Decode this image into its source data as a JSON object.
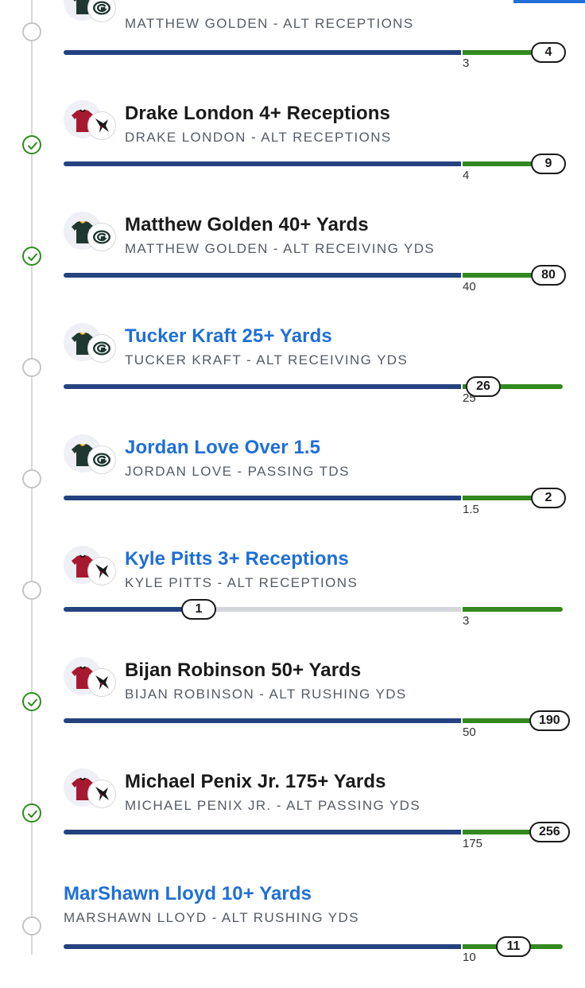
{
  "legs": [
    {
      "title": "",
      "subtitle": "MATTHEW GOLDEN - ALT RECEPTIONS",
      "threshold": "3",
      "actual": "4",
      "status": "open",
      "team": "packers",
      "title_style": "dark"
    },
    {
      "title": "Drake London 4+ Receptions",
      "subtitle": "DRAKE LONDON - ALT RECEPTIONS",
      "threshold": "4",
      "actual": "9",
      "status": "won",
      "team": "falcons",
      "title_style": "dark"
    },
    {
      "title": "Matthew Golden 40+ Yards",
      "subtitle": "MATTHEW GOLDEN - ALT RECEIVING YDS",
      "threshold": "40",
      "actual": "80",
      "status": "won",
      "team": "packers",
      "title_style": "dark"
    },
    {
      "title": "Tucker Kraft 25+ Yards",
      "subtitle": "TUCKER KRAFT - ALT RECEIVING YDS",
      "threshold": "25",
      "actual": "26",
      "status": "open",
      "team": "packers",
      "title_style": "link"
    },
    {
      "title": "Jordan Love Over 1.5",
      "subtitle": "JORDAN LOVE - PASSING TDS",
      "threshold": "1.5",
      "actual": "2",
      "status": "open",
      "team": "packers",
      "title_style": "link"
    },
    {
      "title": "Kyle Pitts 3+ Receptions",
      "subtitle": "KYLE PITTS - ALT RECEPTIONS",
      "threshold": "3",
      "actual": "1",
      "status": "open",
      "team": "falcons",
      "title_style": "link"
    },
    {
      "title": "Bijan Robinson 50+ Yards",
      "subtitle": "BIJAN ROBINSON - ALT RUSHING YDS",
      "threshold": "50",
      "actual": "190",
      "status": "won",
      "team": "falcons",
      "title_style": "dark"
    },
    {
      "title": "Michael Penix Jr. 175+ Yards",
      "subtitle": "MICHAEL PENIX JR. - ALT PASSING YDS",
      "threshold": "175",
      "actual": "256",
      "status": "won",
      "team": "falcons",
      "title_style": "dark"
    },
    {
      "title": "MarShawn Lloyd 10+ Yards",
      "subtitle": "MARSHAWN LLOYD - ALT RUSHING YDS",
      "threshold": "10",
      "actual": "11",
      "status": "open",
      "team": "none",
      "title_style": "link"
    }
  ],
  "colors": {
    "progress_blue": "#24427f",
    "goal_green": "#33891f",
    "link_blue": "#1f6fd6",
    "won_green": "#2e8b1e",
    "falcons_red": "#a71930",
    "packers_green": "#203731",
    "packers_gold": "#ffb612"
  },
  "icons": {
    "won": "checkmark-circle-icon",
    "open": "empty-circle-icon",
    "packers": "packers-logo-icon",
    "falcons": "falcons-logo-icon",
    "jersey": "jersey-icon"
  }
}
